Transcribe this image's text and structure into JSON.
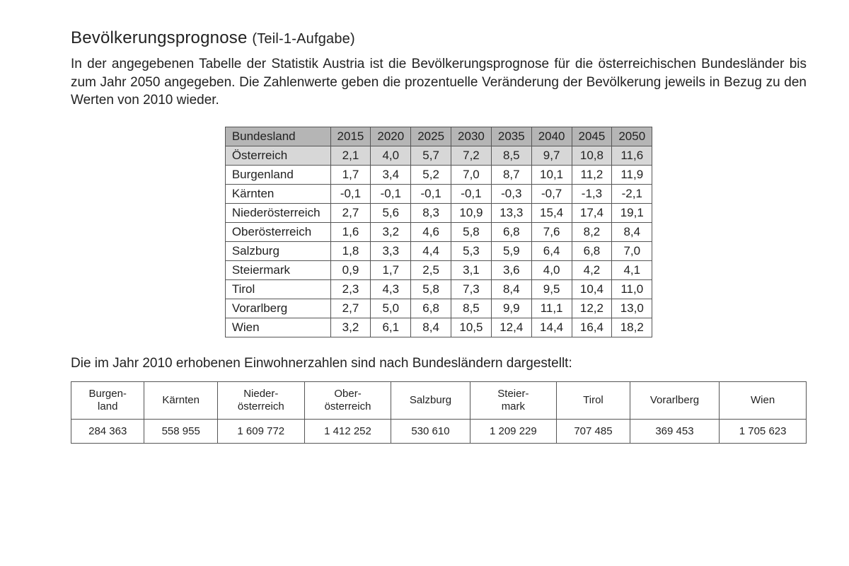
{
  "title_main": "Bevölkerungsprognose",
  "title_sub": "(Teil-1-Aufgabe)",
  "intro": "In der angegebenen Tabelle der Statistik Austria ist die Bevölkerungsprognose für die österreichischen Bundesländer bis zum Jahr 2050 angegeben. Die Zahlenwerte geben die prozentuelle Veränderung der Bevölkerung jeweils in Bezug zu den Werten von 2010 wieder.",
  "table1": {
    "header_label": "Bundesland",
    "years": [
      "2015",
      "2020",
      "2025",
      "2030",
      "2035",
      "2040",
      "2045",
      "2050"
    ],
    "rows": [
      {
        "label": "Österreich",
        "highlight": true,
        "values": [
          "2,1",
          "4,0",
          "5,7",
          "7,2",
          "8,5",
          "9,7",
          "10,8",
          "11,6"
        ]
      },
      {
        "label": "Burgenland",
        "values": [
          "1,7",
          "3,4",
          "5,2",
          "7,0",
          "8,7",
          "10,1",
          "11,2",
          "11,9"
        ]
      },
      {
        "label": "Kärnten",
        "values": [
          "-0,1",
          "-0,1",
          "-0,1",
          "-0,1",
          "-0,3",
          "-0,7",
          "-1,3",
          "-2,1"
        ]
      },
      {
        "label": "Niederösterreich",
        "values": [
          "2,7",
          "5,6",
          "8,3",
          "10,9",
          "13,3",
          "15,4",
          "17,4",
          "19,1"
        ]
      },
      {
        "label": "Oberösterreich",
        "values": [
          "1,6",
          "3,2",
          "4,6",
          "5,8",
          "6,8",
          "7,6",
          "8,2",
          "8,4"
        ]
      },
      {
        "label": "Salzburg",
        "values": [
          "1,8",
          "3,3",
          "4,4",
          "5,3",
          "5,9",
          "6,4",
          "6,8",
          "7,0"
        ]
      },
      {
        "label": "Steiermark",
        "values": [
          "0,9",
          "1,7",
          "2,5",
          "3,1",
          "3,6",
          "4,0",
          "4,2",
          "4,1"
        ]
      },
      {
        "label": "Tirol",
        "values": [
          "2,3",
          "4,3",
          "5,8",
          "7,3",
          "8,4",
          "9,5",
          "10,4",
          "11,0"
        ]
      },
      {
        "label": "Vorarlberg",
        "values": [
          "2,7",
          "5,0",
          "6,8",
          "8,5",
          "9,9",
          "11,1",
          "12,2",
          "13,0"
        ]
      },
      {
        "label": "Wien",
        "values": [
          "3,2",
          "6,1",
          "8,4",
          "10,5",
          "12,4",
          "14,4",
          "16,4",
          "18,2"
        ]
      }
    ]
  },
  "mid_text": "Die im Jahr 2010 erhobenen Einwohnerzahlen sind nach Bundesländern dargestellt:",
  "table2": {
    "headers": [
      "Burgen-\nland",
      "Kärnten",
      "Nieder-\nösterreich",
      "Ober-\nösterreich",
      "Salzburg",
      "Steier-\nmark",
      "Tirol",
      "Vorarlberg",
      "Wien"
    ],
    "values": [
      "284 363",
      "558 955",
      "1 609 772",
      "1 412 252",
      "530 610",
      "1 209 229",
      "707 485",
      "369 453",
      "1 705 623"
    ]
  }
}
